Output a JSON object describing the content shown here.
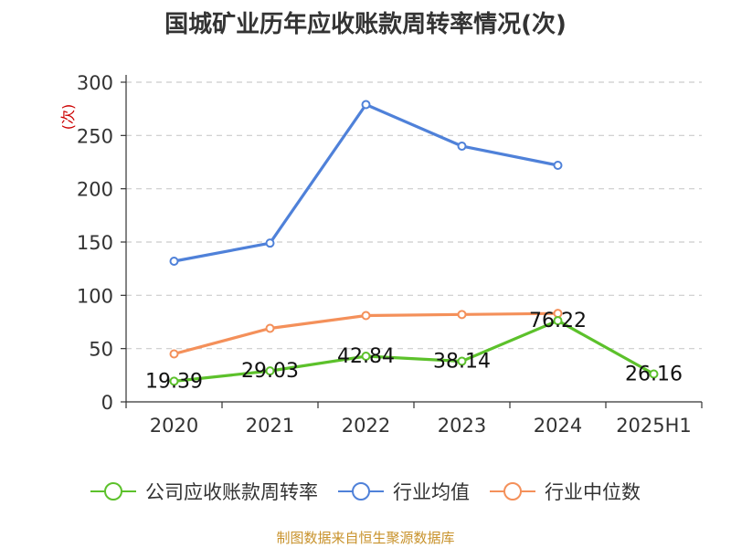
{
  "chart_data": {
    "type": "line",
    "title": "国城矿业历年应收账款周转率情况(次)",
    "ylabel": "(次)",
    "xlabel": "",
    "categories": [
      "2020",
      "2021",
      "2022",
      "2023",
      "2024",
      "2025H1"
    ],
    "ylim": [
      0,
      300
    ],
    "yticks": [
      0,
      50,
      100,
      150,
      200,
      250,
      300
    ],
    "grid": true,
    "legend_position": "bottom",
    "series": [
      {
        "name": "公司应收账款周转率",
        "color": "#5cc12b",
        "values": [
          19.39,
          29.03,
          42.84,
          38.14,
          76.22,
          26.16
        ],
        "labels": [
          "19.39",
          "29.03",
          "42.84",
          "38.14",
          "76.22",
          "26.16"
        ]
      },
      {
        "name": "行业均值",
        "color": "#4f81d9",
        "values": [
          132,
          149,
          279,
          240,
          222,
          null
        ]
      },
      {
        "name": "行业中位数",
        "color": "#f4905a",
        "values": [
          45,
          69,
          81,
          82,
          83,
          null
        ]
      }
    ]
  },
  "source": "制图数据来自恒生聚源数据库"
}
